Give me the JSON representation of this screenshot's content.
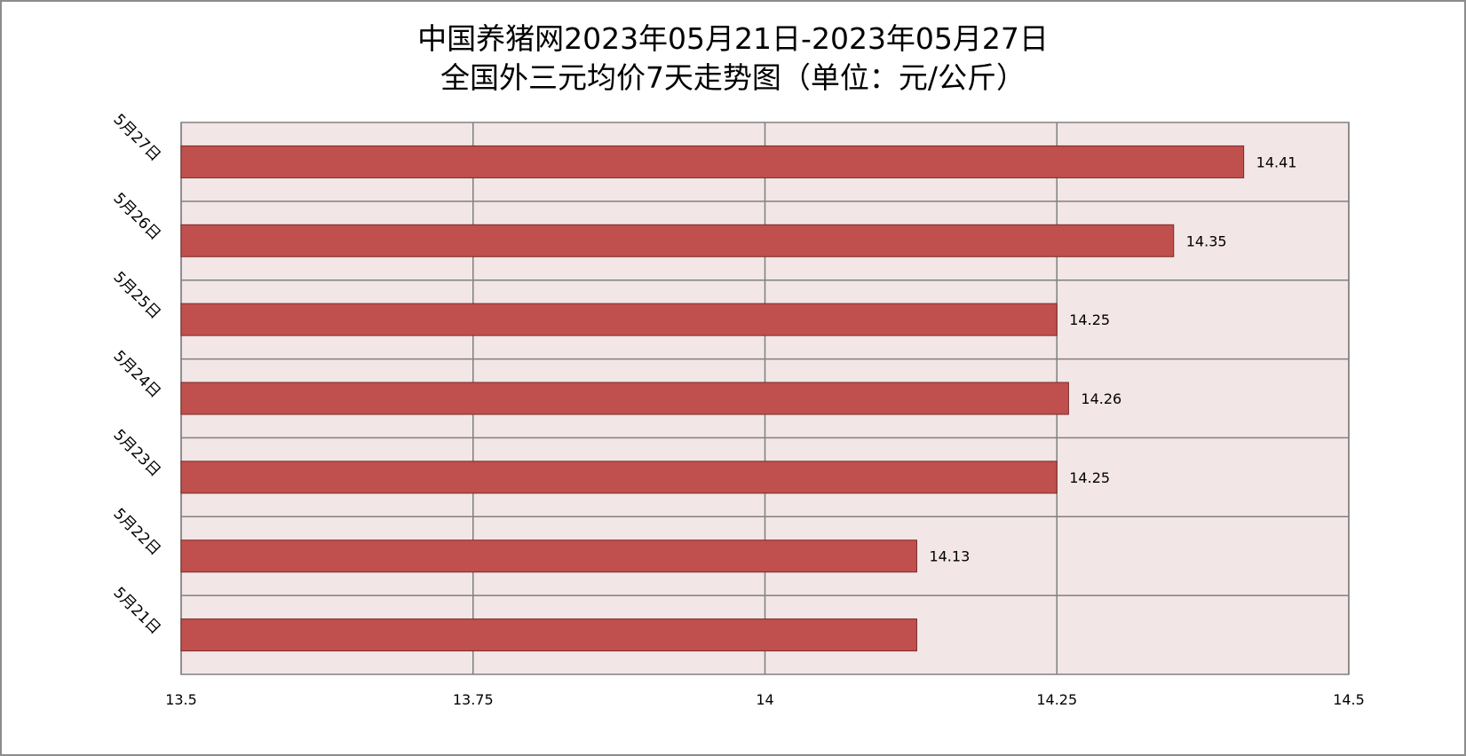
{
  "title": {
    "line1": "中国养猪网2023年05月21日-2023年05月27日",
    "line2": "全国外三元均价7天走势图（单位：元/公斤）"
  },
  "colors": {
    "bar_fill": "#c0504d",
    "bar_stroke": "#7a2a28",
    "plot_background": "#f2e6e6",
    "grid": "#808080",
    "frame": "#8c8c8c"
  },
  "chart_data": {
    "type": "bar",
    "orientation": "horizontal",
    "title": "中国养猪网2023年05月21日-2023年05月27日 全国外三元均价7天走势图（单位：元/公斤）",
    "categories": [
      "5月27日",
      "5月26日",
      "5月25日",
      "5月24日",
      "5月23日",
      "5月22日",
      "5月21日"
    ],
    "values": [
      14.41,
      14.35,
      14.25,
      14.26,
      14.25,
      14.13,
      14.13
    ],
    "data_labels": [
      "14.41",
      "14.35",
      "14.25",
      "14.26",
      "14.25",
      "14.13",
      ""
    ],
    "xlim": [
      13.5,
      14.5
    ],
    "xticks": [
      13.5,
      13.75,
      14,
      14.25,
      14.5
    ],
    "xtick_labels": [
      "13.5",
      "13.75",
      "14",
      "14.25",
      "14.5"
    ],
    "grid": true,
    "legend": "none"
  }
}
